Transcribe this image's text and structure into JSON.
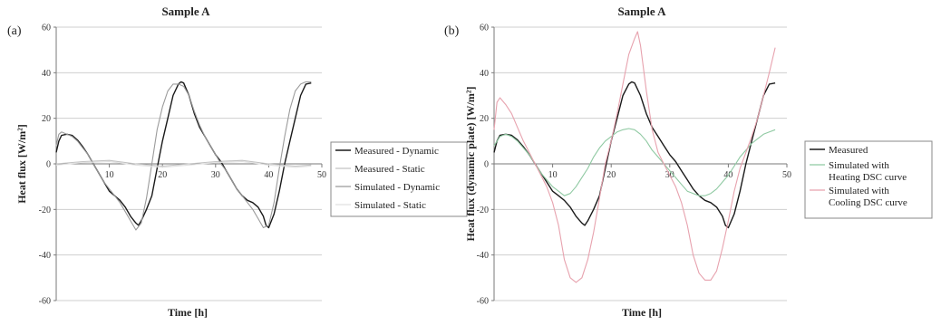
{
  "chart_data": [
    {
      "type": "line",
      "panel_label": "(a)",
      "title": "Sample A",
      "xlabel": "Time  [h]",
      "ylabel": "Heat flux  [W/m²]",
      "xlim": [
        0,
        50
      ],
      "ylim": [
        -60,
        60
      ],
      "xticks": [
        0,
        10,
        20,
        30,
        40,
        50
      ],
      "yticks": [
        60,
        40,
        20,
        0,
        -20,
        -40,
        -60
      ],
      "xtick_labels": [
        "10",
        "20",
        "30",
        "40",
        "50"
      ],
      "ytick_labels": [
        "60",
        "40",
        "20",
        "0",
        "-20",
        "-40",
        "-60"
      ],
      "grid": "horizontal",
      "legend_placement": "right",
      "series": [
        {
          "name": "Measured - Dynamic",
          "color": "#1a1a1a",
          "x": [
            0,
            0.5,
            1,
            2,
            3,
            4,
            5,
            6,
            7,
            8,
            9,
            10,
            11,
            12,
            13,
            14,
            15,
            15.5,
            16,
            17,
            18,
            19,
            20,
            21,
            22,
            23,
            23.5,
            24,
            25,
            26,
            27,
            28,
            29,
            30,
            31,
            32,
            33,
            34,
            35,
            36,
            37,
            38,
            39,
            39.5,
            40,
            41,
            42,
            43,
            44,
            45,
            46,
            47,
            48
          ],
          "y": [
            5,
            10,
            12.5,
            13,
            12.5,
            10.5,
            7.5,
            4,
            0,
            -4,
            -8,
            -12,
            -14,
            -16,
            -19,
            -23,
            -26,
            -27,
            -25,
            -20,
            -14,
            -2,
            10,
            20,
            30,
            35,
            36,
            35.5,
            30,
            22,
            16,
            12,
            8,
            4,
            1,
            -3,
            -7,
            -11,
            -14,
            -16,
            -17,
            -19,
            -23,
            -27,
            -28,
            -22,
            -12,
            0,
            10,
            20,
            30,
            35,
            35.5
          ]
        },
        {
          "name": "Measured - Static",
          "color": "#c2c2c2",
          "x": [
            0,
            5,
            10,
            15,
            20,
            25,
            30,
            35,
            40,
            45,
            48
          ],
          "y": [
            0,
            1,
            1.5,
            0,
            -1,
            0,
            1,
            1.5,
            0,
            -1,
            -0.5
          ]
        },
        {
          "name": "Simulated - Dynamic",
          "color": "#9b9b9b",
          "x": [
            0,
            0.5,
            1,
            2,
            3,
            4,
            5,
            6,
            7,
            8,
            9,
            10,
            11,
            12,
            13,
            14,
            15,
            16,
            17,
            18,
            19,
            20,
            21,
            22,
            23,
            24,
            25,
            26,
            27,
            28,
            29,
            30,
            31,
            32,
            33,
            34,
            35,
            36,
            37,
            38,
            39,
            40,
            41,
            42,
            43,
            44,
            45,
            46,
            47,
            48
          ],
          "y": [
            8,
            13,
            14,
            13,
            12,
            10,
            7,
            4,
            0,
            -4,
            -8,
            -11,
            -14,
            -17,
            -21,
            -25,
            -29,
            -26,
            -15,
            0,
            15,
            25,
            32,
            35,
            35,
            34,
            30,
            23,
            17,
            12,
            8,
            4,
            0,
            -3,
            -7,
            -11,
            -14,
            -17,
            -20,
            -24,
            -28,
            -27,
            -17,
            -2,
            12,
            24,
            32,
            35,
            36,
            36
          ]
        },
        {
          "name": "Simulated - Static",
          "color": "#e0e0e0",
          "x": [
            0,
            5,
            10,
            15,
            20,
            25,
            30,
            35,
            40,
            45,
            48
          ],
          "y": [
            -0.5,
            0.5,
            1,
            -0.5,
            -1.5,
            -0.5,
            0.5,
            1,
            -0.5,
            -1.5,
            -1
          ]
        }
      ]
    },
    {
      "type": "line",
      "panel_label": "(b)",
      "title": "Sample A",
      "xlabel": "Time  [h]",
      "ylabel": "Heat flux (dynamic plate) [W/m²]",
      "xlim": [
        0,
        50
      ],
      "ylim": [
        -60,
        60
      ],
      "xticks": [
        0,
        10,
        20,
        30,
        40,
        50
      ],
      "yticks": [
        60,
        40,
        20,
        0,
        -20,
        -40,
        -60
      ],
      "xtick_labels": [
        "10",
        "20",
        "30",
        "40",
        "50"
      ],
      "ytick_labels": [
        "60",
        "40",
        "20",
        "0",
        "-20",
        "-40",
        "-60"
      ],
      "grid": "horizontal",
      "legend_placement": "right",
      "series": [
        {
          "name": "Measured",
          "color": "#1a1a1a",
          "x": [
            0,
            0.5,
            1,
            2,
            3,
            4,
            5,
            6,
            7,
            8,
            9,
            10,
            11,
            12,
            13,
            14,
            15,
            15.5,
            16,
            17,
            18,
            19,
            20,
            21,
            22,
            23,
            23.5,
            24,
            25,
            26,
            27,
            28,
            29,
            30,
            31,
            32,
            33,
            34,
            35,
            36,
            37,
            38,
            39,
            39.5,
            40,
            41,
            42,
            43,
            44,
            45,
            46,
            47,
            48
          ],
          "y": [
            5,
            10,
            12.5,
            13,
            12.5,
            10.5,
            7.5,
            4,
            0,
            -4,
            -8,
            -12,
            -14,
            -16,
            -19,
            -23,
            -26,
            -27,
            -25,
            -20,
            -14,
            -2,
            10,
            20,
            30,
            35,
            36,
            35.5,
            30,
            22,
            16,
            12,
            8,
            4,
            1,
            -3,
            -7,
            -11,
            -14,
            -16,
            -17,
            -19,
            -23,
            -27,
            -28,
            -22,
            -12,
            0,
            10,
            20,
            30,
            35,
            35.5
          ]
        },
        {
          "name": "Simulated with Heating DSC curve",
          "color": "#8fc9a2",
          "x": [
            0,
            1,
            2,
            3,
            4,
            5,
            6,
            7,
            8,
            9,
            10,
            11,
            12,
            13,
            14,
            15,
            16,
            17,
            18,
            19,
            20,
            21,
            22,
            23,
            24,
            25,
            26,
            27,
            28,
            29,
            30,
            31,
            32,
            33,
            34,
            35,
            36,
            37,
            38,
            39,
            40,
            41,
            42,
            43,
            44,
            45,
            46,
            47,
            48
          ],
          "y": [
            8,
            12,
            13,
            12,
            10,
            7,
            4,
            0,
            -4,
            -7,
            -10,
            -12,
            -14,
            -13,
            -10,
            -6,
            -2,
            3,
            7,
            10,
            12,
            14,
            15,
            15.5,
            15,
            13,
            10,
            6,
            3,
            0,
            -3,
            -6,
            -9,
            -12,
            -13,
            -14,
            -14,
            -13,
            -11,
            -8,
            -5,
            -1,
            3,
            6,
            9,
            11,
            13,
            14,
            15
          ]
        },
        {
          "name": "Simulated with Cooling DSC curve",
          "color": "#e7a2ae",
          "x": [
            0,
            0.5,
            1,
            2,
            3,
            4,
            5,
            6,
            7,
            8,
            9,
            10,
            11,
            12,
            13,
            14,
            15,
            16,
            17,
            18,
            19,
            20,
            21,
            22,
            23,
            24,
            24.5,
            25,
            26,
            27,
            28,
            29,
            30,
            31,
            32,
            33,
            34,
            35,
            36,
            37,
            38,
            39,
            40,
            41,
            42,
            43,
            44,
            45,
            46,
            47,
            48
          ],
          "y": [
            15,
            27,
            29,
            26,
            22,
            16,
            10,
            5,
            0,
            -5,
            -10,
            -17,
            -27,
            -42,
            -50,
            -52,
            -50,
            -42,
            -30,
            -15,
            0,
            10,
            22,
            35,
            48,
            55,
            58,
            52,
            32,
            15,
            5,
            0,
            -5,
            -10,
            -17,
            -27,
            -40,
            -48,
            -51,
            -51,
            -47,
            -37,
            -25,
            -12,
            -2,
            5,
            12,
            20,
            30,
            40,
            51
          ]
        }
      ]
    }
  ]
}
